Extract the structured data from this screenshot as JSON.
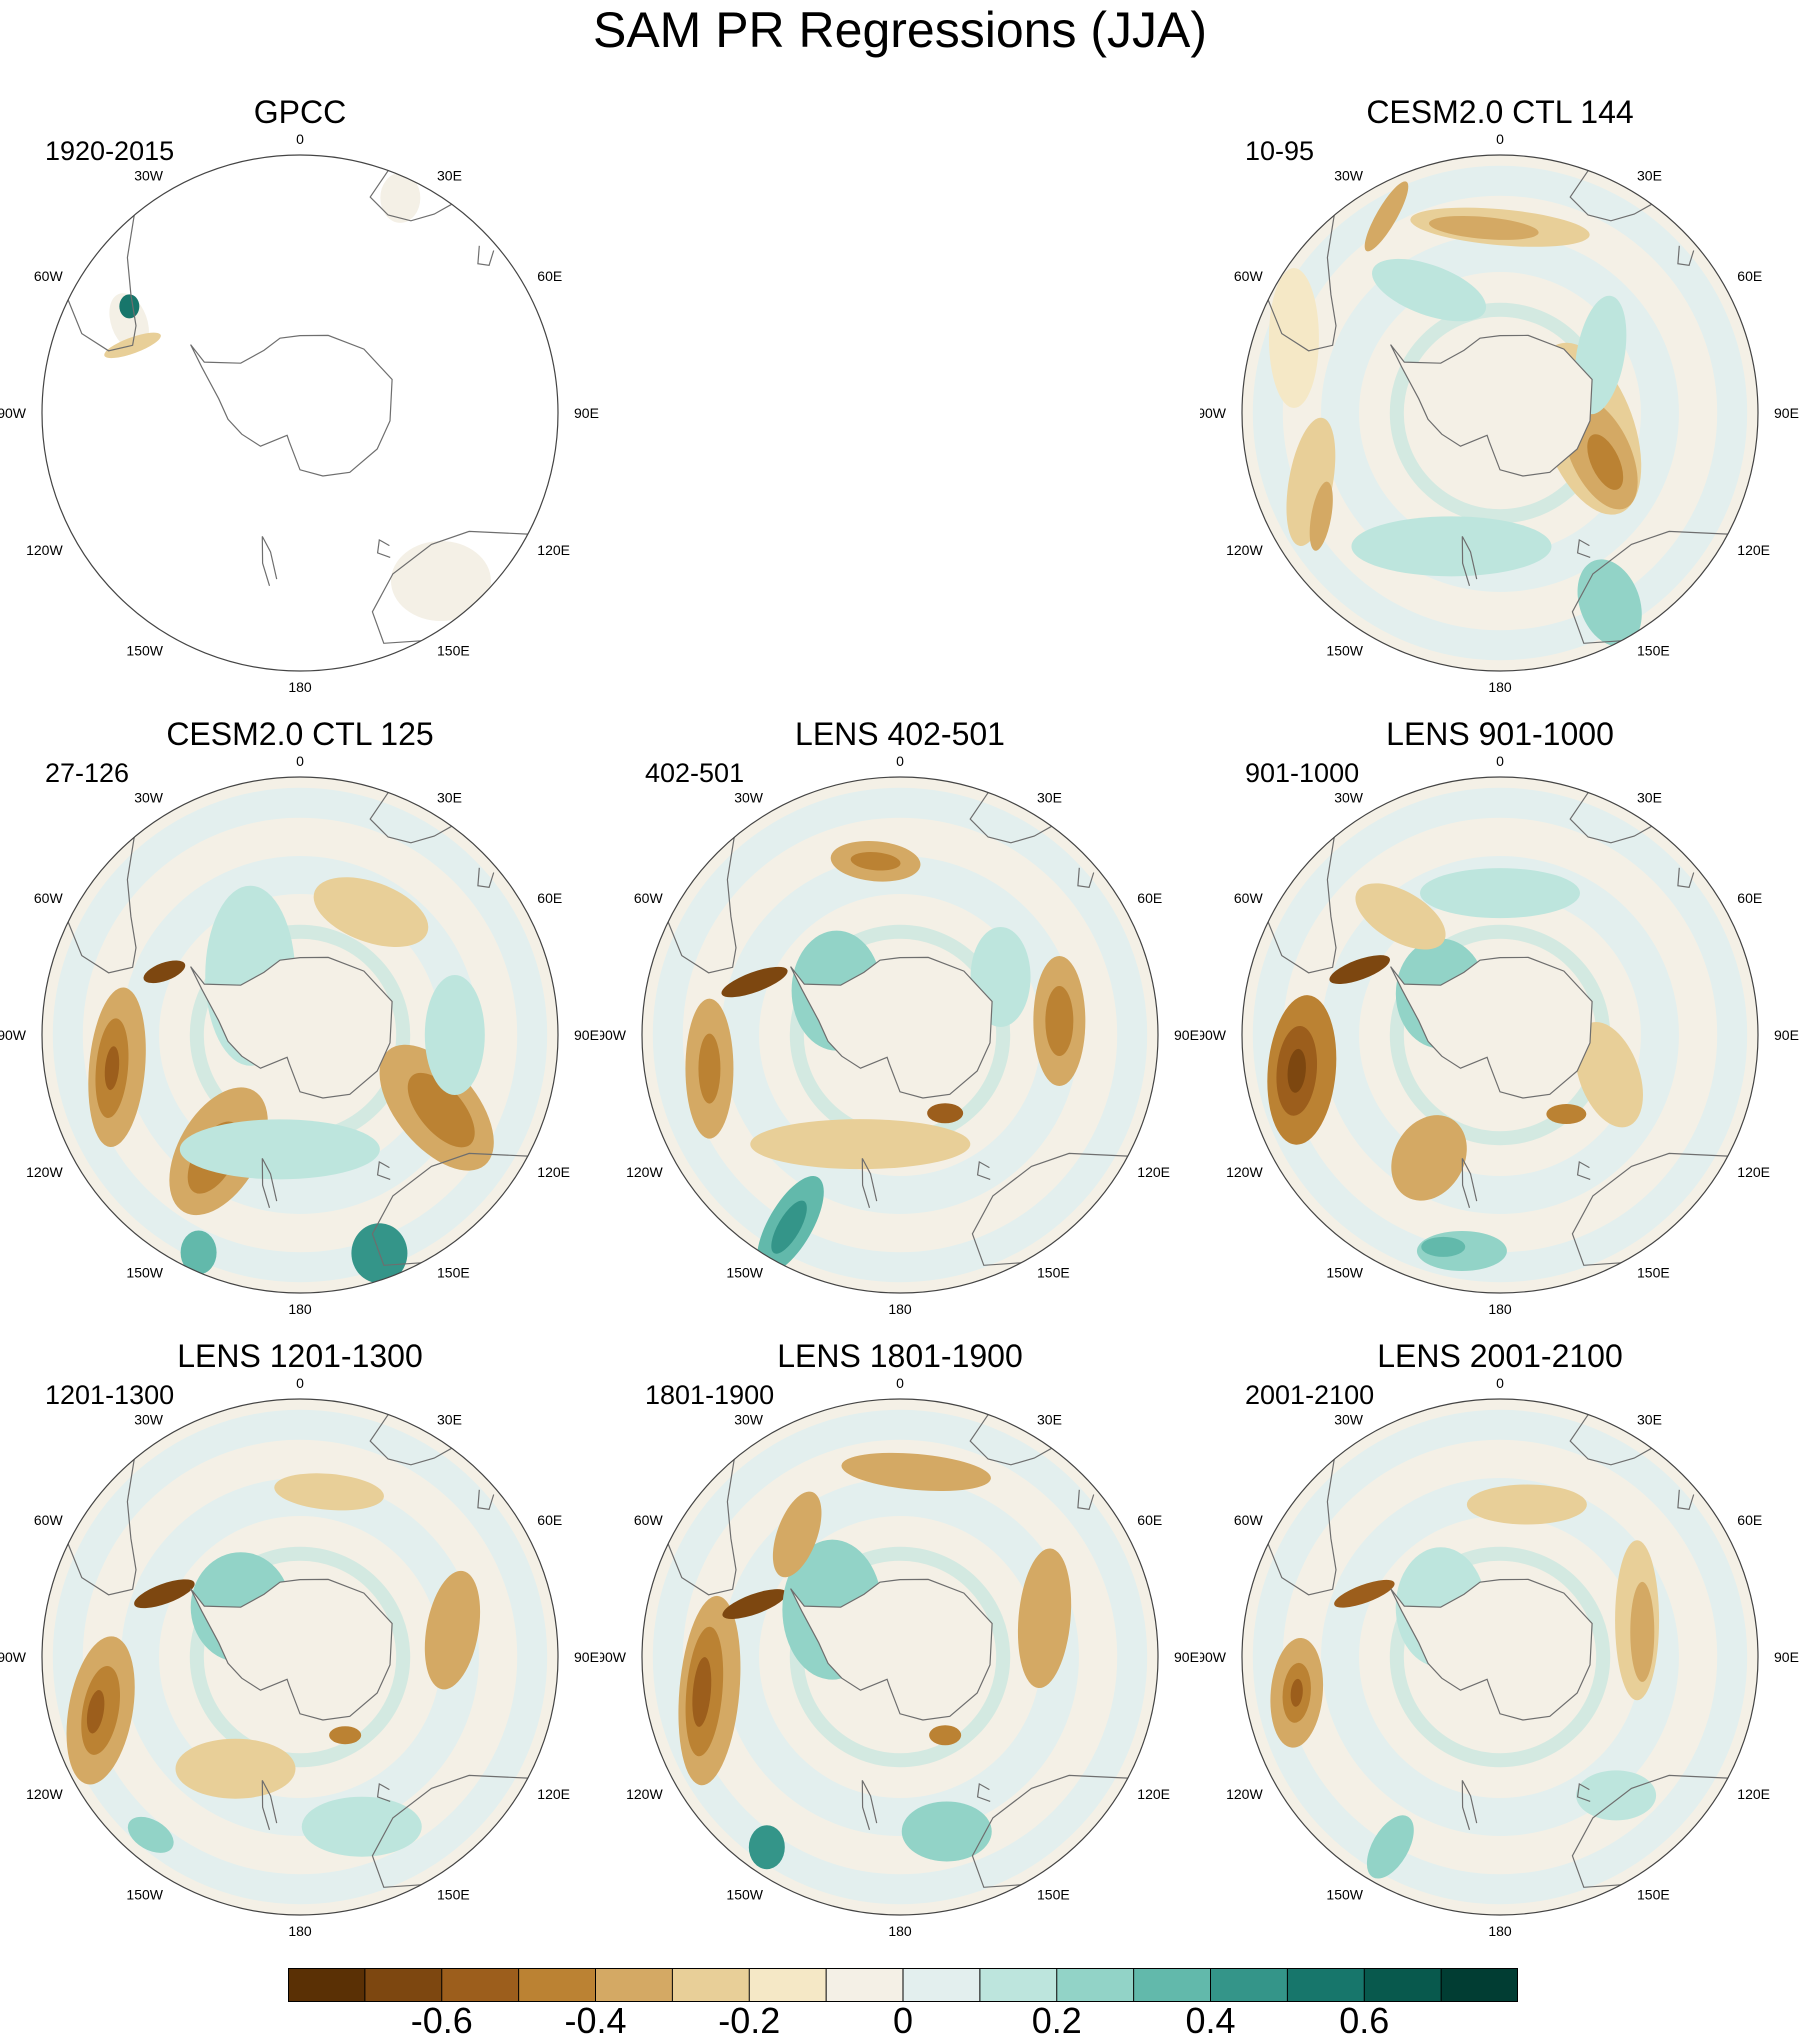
{
  "title": "SAM PR Regressions (JJA)",
  "panels": [
    {
      "id": "gpcc",
      "title": "GPCC",
      "years": "1920-2015",
      "land_only": true
    },
    {
      "id": "ctl144",
      "title": "CESM2.0 CTL 144",
      "years": "10-95",
      "land_only": false
    },
    {
      "id": "ctl125",
      "title": "CESM2.0 CTL 125",
      "years": "27-126",
      "land_only": false
    },
    {
      "id": "lens402",
      "title": "LENS 402-501",
      "years": "402-501",
      "land_only": false
    },
    {
      "id": "lens901",
      "title": "LENS 901-1000",
      "years": "901-1000",
      "land_only": false
    },
    {
      "id": "lens1201",
      "title": "LENS 1201-1300",
      "years": "1201-1300",
      "land_only": false
    },
    {
      "id": "lens1801",
      "title": "LENS 1801-1900",
      "years": "1801-1900",
      "land_only": false
    },
    {
      "id": "lens2001",
      "title": "LENS 2001-2100",
      "years": "2001-2100",
      "land_only": false
    }
  ],
  "longitude_labels": [
    "0",
    "30E",
    "60E",
    "90E",
    "120E",
    "150E",
    "180",
    "150W",
    "120W",
    "90W",
    "60W",
    "30W"
  ],
  "colorbar": {
    "colors": [
      "#5a3005",
      "#7d4710",
      "#9c5e1c",
      "#bb8233",
      "#d4a964",
      "#e8cf98",
      "#f5e8c6",
      "#f4f0e6",
      "#e3efee",
      "#bde5dd",
      "#92d3c7",
      "#62b9ab",
      "#349589",
      "#17766b",
      "#08594d",
      "#013d33"
    ],
    "labels": [
      "-0.6",
      "-0.4",
      "-0.2",
      "0",
      "0.2",
      "0.4",
      "0.6"
    ],
    "label_values": [
      -0.6,
      -0.4,
      -0.2,
      0,
      0.2,
      0.4,
      0.6
    ],
    "min": -0.8,
    "max": 0.8
  }
}
